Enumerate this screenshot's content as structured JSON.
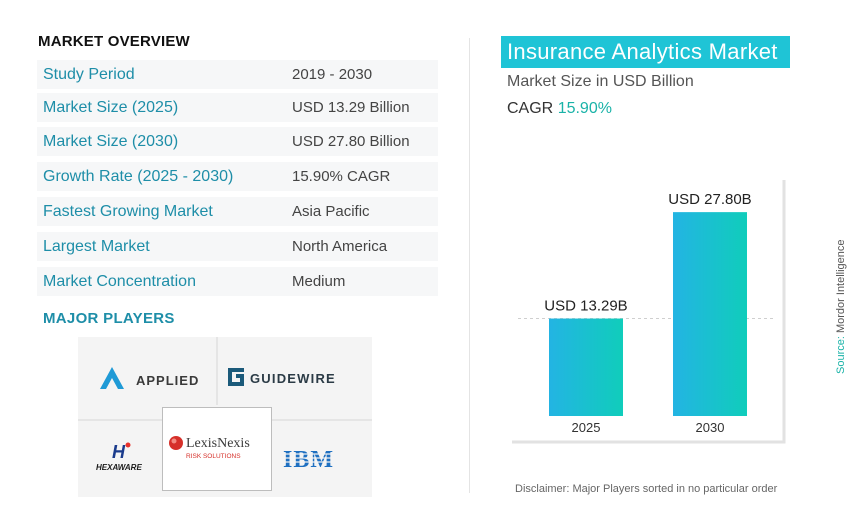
{
  "overview": {
    "title": "MARKET OVERVIEW",
    "rows": [
      {
        "label": "Study Period",
        "value": "2019 - 2030"
      },
      {
        "label": "Market Size (2025)",
        "value": "USD 13.29 Billion"
      },
      {
        "label": "Market Size (2030)",
        "value": "USD 27.80 Billion"
      },
      {
        "label": "Growth Rate (2025 - 2030)",
        "value": "15.90% CAGR"
      },
      {
        "label": "Fastest Growing Market",
        "value": "Asia Pacific"
      },
      {
        "label": "Largest Market",
        "value": "North America"
      },
      {
        "label": "Market Concentration",
        "value": "Medium"
      }
    ]
  },
  "players": {
    "title": "MAJOR PLAYERS",
    "logos": {
      "applied": "APPLIED",
      "guidewire": "GUIDEWIRE",
      "hexaware": "HEXAWARE",
      "lexisnexis": "LexisNexis",
      "lexisnexis_sub": "RISK SOLUTIONS",
      "ibm": "IBM"
    }
  },
  "chart_header": {
    "title": "Insurance Analytics Market",
    "subtitle": "Market Size in USD Billion",
    "cagr_label": "CAGR",
    "cagr_value": "15.90%"
  },
  "chart_data": {
    "type": "bar",
    "categories": [
      "2025",
      "2030"
    ],
    "values": [
      13.29,
      27.8
    ],
    "data_labels": [
      "USD 13.29B",
      "USD 27.80B"
    ],
    "title": "Insurance Analytics Market",
    "ylabel": "",
    "xlabel": "",
    "ylim": [
      0,
      30
    ],
    "grid": false,
    "colors": [
      "#23b4e3",
      "#10cdbb"
    ]
  },
  "source": {
    "label": "Source:",
    "value": "Mordor Intelligence"
  },
  "disclaimer": "Disclaimer:  Major Players sorted in no particular order"
}
